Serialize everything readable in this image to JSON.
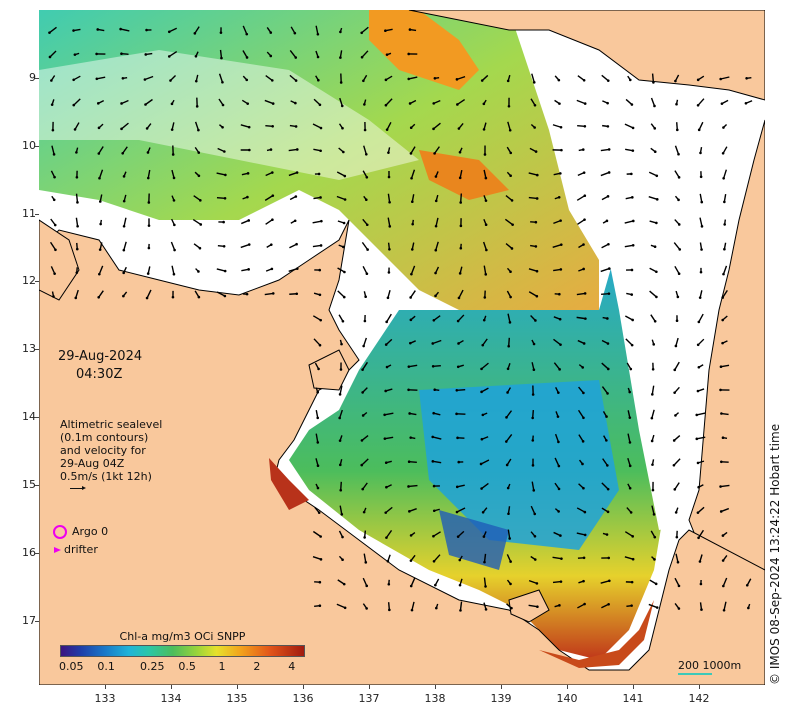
{
  "map": {
    "lat_ticks": [
      "9",
      "10",
      "11",
      "12",
      "13",
      "14",
      "15",
      "16",
      "17"
    ],
    "lon_ticks": [
      "133",
      "134",
      "135",
      "136",
      "137",
      "138",
      "139",
      "140",
      "141",
      "142"
    ],
    "lat_range": [
      -8.0,
      -17.95
    ],
    "lon_range": [
      132.0,
      143.0
    ]
  },
  "date": {
    "line1": "29-Aug-2024",
    "line2": "04:30Z"
  },
  "altimetry": {
    "lines": [
      "Altimetric sealevel",
      "(0.1m contours)",
      "and velocity for",
      "29-Aug 04Z",
      "0.5m/s (1kt 12h)"
    ]
  },
  "legend": {
    "argo_label": "Argo 0",
    "drifter_label": "drifter",
    "argo_color": "#ee00ee",
    "drifter_color": "#ee00ee"
  },
  "colorbar": {
    "title": "Chl-a mg/m3 OCi SNPP",
    "ticks": [
      "0.05",
      "0.1",
      "0.25",
      "0.5",
      "1",
      "2",
      "4"
    ],
    "colors": [
      "#3b1480",
      "#1f3da8",
      "#1a78c8",
      "#21b4d8",
      "#2bc6a8",
      "#4cbd5c",
      "#9ad43a",
      "#e6e12c",
      "#f2a21c",
      "#e2551a",
      "#a11b0f"
    ]
  },
  "scale": {
    "label": "200  1000m",
    "color": "#3cc9b9"
  },
  "copyright": "© IMOS 08-Sep-2024 13:24:22 Hobart time",
  "colors": {
    "land": "#f9c89c",
    "coast": "#000000",
    "nodata": "#ffffff"
  }
}
